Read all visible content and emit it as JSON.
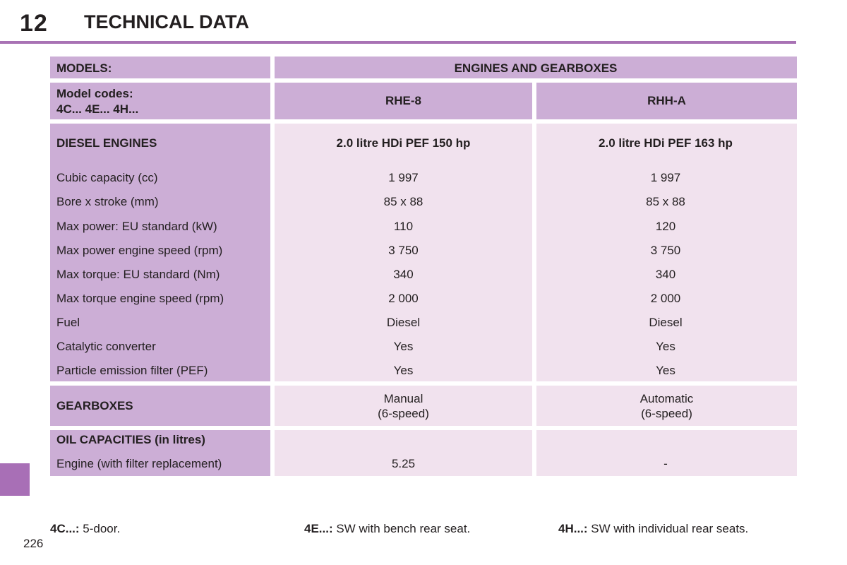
{
  "header": {
    "chapter": "12",
    "title": "TECHNICAL DATA"
  },
  "table": {
    "models_label": "MODELS:",
    "engines_label": "ENGINES AND GEARBOXES",
    "model_codes_line1": "Model codes:",
    "model_codes_line2": "4C... 4E... 4H...",
    "col1_code": "RHE-8",
    "col2_code": "RHH-A",
    "diesel_label": "DIESEL ENGINES",
    "col1_engine": "2.0 litre HDi PEF 150 hp",
    "col2_engine": "2.0 litre HDi PEF 163 hp",
    "rows": [
      {
        "label": "Cubic capacity (cc)",
        "v1": "1 997",
        "v2": "1 997"
      },
      {
        "label": "Bore x stroke (mm)",
        "v1": "85 x 88",
        "v2": "85 x 88"
      },
      {
        "label": "Max power: EU standard (kW)",
        "v1": "110",
        "v2": "120"
      },
      {
        "label": "Max power engine speed (rpm)",
        "v1": "3 750",
        "v2": "3 750"
      },
      {
        "label": "Max torque: EU standard (Nm)",
        "v1": "340",
        "v2": "340"
      },
      {
        "label": "Max torque engine speed (rpm)",
        "v1": "2 000",
        "v2": "2 000"
      },
      {
        "label": "Fuel",
        "v1": "Diesel",
        "v2": "Diesel"
      },
      {
        "label": "Catalytic converter",
        "v1": "Yes",
        "v2": "Yes"
      },
      {
        "label": "Particle emission filter (PEF)",
        "v1": "Yes",
        "v2": "Yes"
      }
    ],
    "gearboxes_label": "GEARBOXES",
    "col1_gearbox_line1": "Manual",
    "col1_gearbox_line2": "(6-speed)",
    "col2_gearbox_line1": "Automatic",
    "col2_gearbox_line2": "(6-speed)",
    "oil_label": "OIL CAPACITIES (in litres)",
    "oil_engine_label": "Engine (with filter replacement)",
    "col1_oil": "5.25",
    "col2_oil": "-"
  },
  "footnotes": [
    {
      "code": "4C...:",
      "text": " 5-door."
    },
    {
      "code": "4E...:",
      "text": " SW with bench rear seat."
    },
    {
      "code": "4H...:",
      "text": " SW with individual rear seats."
    }
  ],
  "page_number": "226",
  "colors": {
    "accent": "#a872b4",
    "header_cell": "#ccaed6",
    "data_cell": "#f1e2ee"
  }
}
